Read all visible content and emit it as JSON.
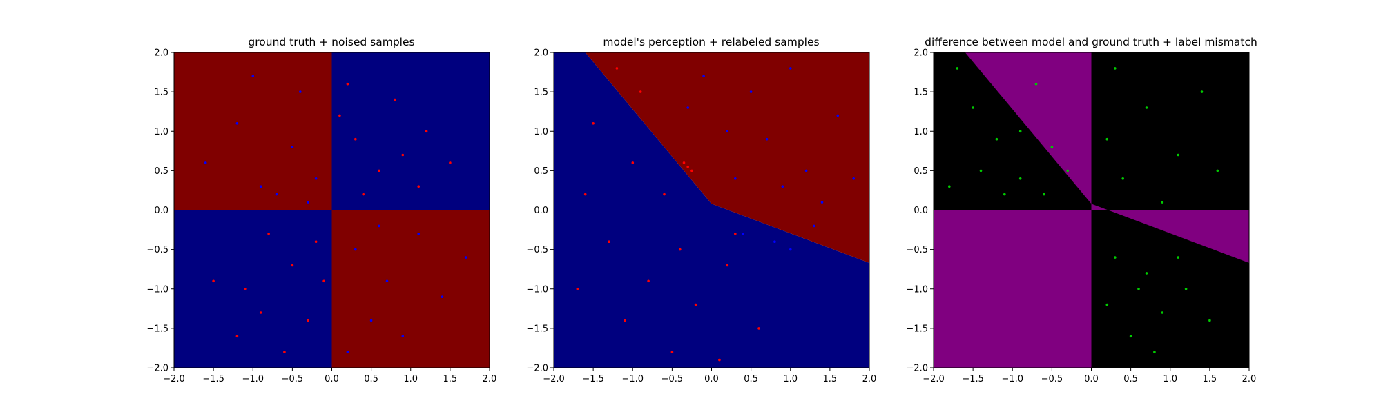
{
  "figure": {
    "background": "#ffffff"
  },
  "chart_data": [
    {
      "type": "scatter",
      "title": "ground truth + noised samples",
      "xlabel": "",
      "ylabel": "",
      "xlim": [
        -2.0,
        2.0
      ],
      "ylim": [
        -2.0,
        2.0
      ],
      "xticks": [
        "−2.0",
        "−1.5",
        "−1.0",
        "−0.5",
        "0.0",
        "0.5",
        "1.0",
        "1.5",
        "2.0"
      ],
      "yticks": [
        "−2.0",
        "−1.5",
        "−1.0",
        "−0.5",
        "0.0",
        "0.5",
        "1.0",
        "1.5",
        "2.0"
      ],
      "grid": false,
      "background_regions": [
        {
          "label": "x<0, y>0",
          "color": "#800000",
          "polygon": [
            [
              -2,
              0
            ],
            [
              0,
              0
            ],
            [
              0,
              2
            ],
            [
              -2,
              2
            ]
          ]
        },
        {
          "label": "x>0, y>0",
          "color": "#00007f",
          "polygon": [
            [
              0,
              0
            ],
            [
              2,
              0
            ],
            [
              2,
              2
            ],
            [
              0,
              2
            ]
          ]
        },
        {
          "label": "x<0, y<0",
          "color": "#00007f",
          "polygon": [
            [
              -2,
              -2
            ],
            [
              0,
              -2
            ],
            [
              0,
              0
            ],
            [
              -2,
              0
            ]
          ]
        },
        {
          "label": "x>0, y<0",
          "color": "#800000",
          "polygon": [
            [
              0,
              -2
            ],
            [
              2,
              -2
            ],
            [
              2,
              0
            ],
            [
              0,
              0
            ]
          ]
        }
      ],
      "series": [
        {
          "color": "#ff0000",
          "points": [
            [
              0.1,
              1.2
            ],
            [
              0.3,
              0.9
            ],
            [
              0.6,
              0.5
            ],
            [
              0.9,
              0.7
            ],
            [
              1.1,
              0.3
            ],
            [
              1.5,
              0.6
            ],
            [
              0.4,
              0.2
            ],
            [
              0.2,
              1.6
            ],
            [
              0.8,
              1.4
            ],
            [
              1.2,
              1.0
            ],
            [
              -0.2,
              -0.4
            ],
            [
              -0.5,
              -0.7
            ],
            [
              -0.8,
              -0.3
            ],
            [
              -1.1,
              -1.0
            ],
            [
              -0.3,
              -1.4
            ],
            [
              -1.5,
              -0.9
            ],
            [
              -0.6,
              -1.8
            ],
            [
              -1.2,
              -1.6
            ],
            [
              -0.1,
              -0.9
            ],
            [
              -0.9,
              -1.3
            ]
          ]
        },
        {
          "color": "#0000ff",
          "points": [
            [
              -0.2,
              0.4
            ],
            [
              -0.5,
              0.8
            ],
            [
              -0.9,
              0.3
            ],
            [
              -1.2,
              1.1
            ],
            [
              -0.4,
              1.5
            ],
            [
              -1.6,
              0.6
            ],
            [
              -0.7,
              0.2
            ],
            [
              0.3,
              -0.5
            ],
            [
              0.7,
              -0.9
            ],
            [
              1.1,
              -0.3
            ],
            [
              0.5,
              -1.4
            ],
            [
              1.4,
              -1.1
            ],
            [
              0.2,
              -1.8
            ],
            [
              0.9,
              -1.6
            ],
            [
              1.7,
              -0.6
            ],
            [
              -1.0,
              1.7
            ],
            [
              -0.3,
              0.1
            ],
            [
              0.6,
              -0.2
            ]
          ]
        }
      ]
    },
    {
      "type": "scatter",
      "title": "model's perception + relabeled samples",
      "xlabel": "",
      "ylabel": "",
      "xlim": [
        -2.0,
        2.0
      ],
      "ylim": [
        -2.0,
        2.0
      ],
      "xticks": [
        "−2.0",
        "−1.5",
        "−1.0",
        "−0.5",
        "0.0",
        "0.5",
        "1.0",
        "1.5",
        "2.0"
      ],
      "yticks": [
        "−2.0",
        "−1.5",
        "−1.0",
        "−0.5",
        "0.0",
        "0.5",
        "1.0",
        "1.5",
        "2.0"
      ],
      "grid": false,
      "background_regions": [
        {
          "label": "model class A",
          "color": "#00007f",
          "polygon": [
            [
              -2,
              -2
            ],
            [
              2,
              -2
            ],
            [
              2,
              -0.67
            ],
            [
              0,
              0.08
            ],
            [
              -1.6,
              2
            ],
            [
              -2,
              2
            ]
          ]
        },
        {
          "label": "model class B",
          "color": "#800000",
          "polygon": [
            [
              2,
              -0.67
            ],
            [
              2,
              2
            ],
            [
              -1.6,
              2
            ],
            [
              0,
              0.08
            ]
          ]
        }
      ],
      "series": [
        {
          "color": "#ff0000",
          "points": [
            [
              -1.5,
              1.1
            ],
            [
              -1.0,
              0.6
            ],
            [
              -0.6,
              0.2
            ],
            [
              -1.3,
              -0.4
            ],
            [
              -0.8,
              -0.9
            ],
            [
              -0.4,
              -0.5
            ],
            [
              -1.1,
              -1.4
            ],
            [
              -0.2,
              -1.2
            ],
            [
              0.2,
              -0.7
            ],
            [
              0.6,
              -1.5
            ],
            [
              -0.5,
              -1.8
            ],
            [
              -1.7,
              -1.0
            ],
            [
              -0.3,
              0.55
            ],
            [
              -0.25,
              0.5
            ],
            [
              -0.35,
              0.6
            ],
            [
              -0.9,
              1.5
            ],
            [
              -1.2,
              1.8
            ],
            [
              0.1,
              -1.9
            ],
            [
              -1.6,
              0.2
            ],
            [
              0.3,
              -0.3
            ]
          ]
        },
        {
          "color": "#0000ff",
          "points": [
            [
              0.3,
              0.4
            ],
            [
              0.7,
              0.9
            ],
            [
              1.2,
              0.5
            ],
            [
              1.6,
              1.2
            ],
            [
              0.5,
              1.5
            ],
            [
              1.0,
              1.8
            ],
            [
              -0.3,
              1.3
            ],
            [
              0.2,
              1.0
            ],
            [
              1.4,
              0.1
            ],
            [
              1.8,
              0.4
            ],
            [
              0.4,
              -0.3
            ],
            [
              0.8,
              -0.4
            ],
            [
              1.0,
              -0.5
            ],
            [
              1.3,
              -0.2
            ],
            [
              0.9,
              0.3
            ],
            [
              -0.1,
              1.7
            ]
          ]
        }
      ]
    },
    {
      "type": "scatter",
      "title": "difference between model and ground truth + label mismatch",
      "xlabel": "",
      "ylabel": "",
      "xlim": [
        -2.0,
        2.0
      ],
      "ylim": [
        -2.0,
        2.0
      ],
      "xticks": [
        "−2.0",
        "−1.5",
        "−1.0",
        "−0.5",
        "0.0",
        "0.5",
        "1.0",
        "1.5",
        "2.0"
      ],
      "yticks": [
        "−2.0",
        "−1.5",
        "−1.0",
        "−0.5",
        "0.0",
        "0.5",
        "1.0",
        "1.5",
        "2.0"
      ],
      "grid": false,
      "background_regions": [
        {
          "label": "agree",
          "color": "#000000",
          "polygon": [
            [
              -2,
              -2
            ],
            [
              2,
              -2
            ],
            [
              2,
              2
            ],
            [
              -2,
              2
            ]
          ]
        },
        {
          "label": "disagree upper",
          "color": "#800080",
          "polygon": [
            [
              -1.6,
              2
            ],
            [
              0,
              2
            ],
            [
              0,
              0.08
            ]
          ]
        },
        {
          "label": "disagree lower-left",
          "color": "#800080",
          "polygon": [
            [
              -2,
              -2
            ],
            [
              0,
              -2
            ],
            [
              0,
              0
            ],
            [
              -2,
              0
            ]
          ]
        },
        {
          "label": "disagree right",
          "color": "#800080",
          "polygon": [
            [
              0,
              0
            ],
            [
              2,
              0
            ],
            [
              2,
              -0.67
            ],
            [
              0,
              0.08
            ]
          ]
        }
      ],
      "series": [
        {
          "color": "#00cc00",
          "points": [
            [
              -1.7,
              1.8
            ],
            [
              -1.5,
              1.3
            ],
            [
              -1.2,
              0.9
            ],
            [
              -0.9,
              0.4
            ],
            [
              -0.6,
              0.2
            ],
            [
              -1.4,
              0.5
            ],
            [
              -1.8,
              0.3
            ],
            [
              -1.1,
              0.2
            ],
            [
              -0.3,
              0.5
            ],
            [
              -0.5,
              0.8
            ],
            [
              0.2,
              0.9
            ],
            [
              0.4,
              0.4
            ],
            [
              0.7,
              1.3
            ],
            [
              1.1,
              0.7
            ],
            [
              1.4,
              1.5
            ],
            [
              1.6,
              0.5
            ],
            [
              0.9,
              0.1
            ],
            [
              0.3,
              1.8
            ],
            [
              -0.7,
              1.6
            ],
            [
              0.3,
              -0.6
            ],
            [
              0.6,
              -1.0
            ],
            [
              0.9,
              -1.3
            ],
            [
              0.5,
              -1.6
            ],
            [
              1.2,
              -1.0
            ],
            [
              0.8,
              -1.8
            ],
            [
              1.5,
              -1.4
            ],
            [
              0.2,
              -1.2
            ],
            [
              1.1,
              -0.6
            ],
            [
              0.7,
              -0.8
            ],
            [
              -0.9,
              1.0
            ]
          ]
        }
      ]
    }
  ]
}
